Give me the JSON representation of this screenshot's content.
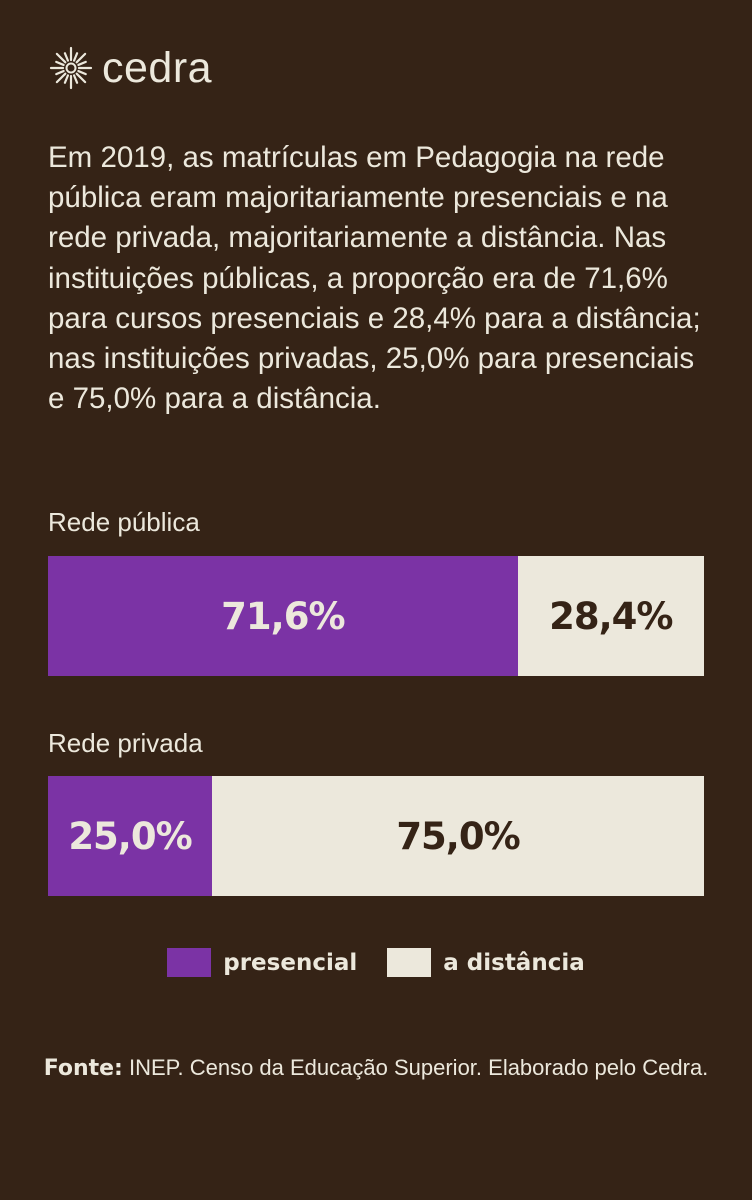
{
  "brand": {
    "name": "cedra",
    "logo_icon": "sunburst-icon"
  },
  "intro_text": "Em 2019, as matrículas em Pedagogia na rede pública eram majoritariamente presenciais e na rede privada, majoritariamente a distância. Nas instituições públicas, a proporção era de 71,6% para cursos presenciais e 28,4% para a distância; nas instituições privadas, 25,0% para presenciais e 75,0% para a distância.",
  "colors": {
    "background": "#352316",
    "presencial": "#7b33a5",
    "a_distancia": "#ece8dc"
  },
  "chart_data": {
    "type": "bar",
    "orientation": "horizontal",
    "stacked": "percent",
    "categories": [
      "Rede pública",
      "Rede privada"
    ],
    "series": [
      {
        "name": "presencial",
        "values": [
          71.6,
          25.0
        ],
        "labels": [
          "71,6%",
          "25,0%"
        ],
        "color": "#7b33a5"
      },
      {
        "name": "a distância",
        "values": [
          28.4,
          75.0
        ],
        "labels": [
          "28,4%",
          "75,0%"
        ],
        "color": "#ece8dc"
      }
    ],
    "legend_position": "bottom",
    "xlim": [
      0,
      100
    ],
    "grid": false
  },
  "source": {
    "label": "Fonte:",
    "text": "INEP. Censo da Educação Superior. Elaborado pelo Cedra."
  }
}
